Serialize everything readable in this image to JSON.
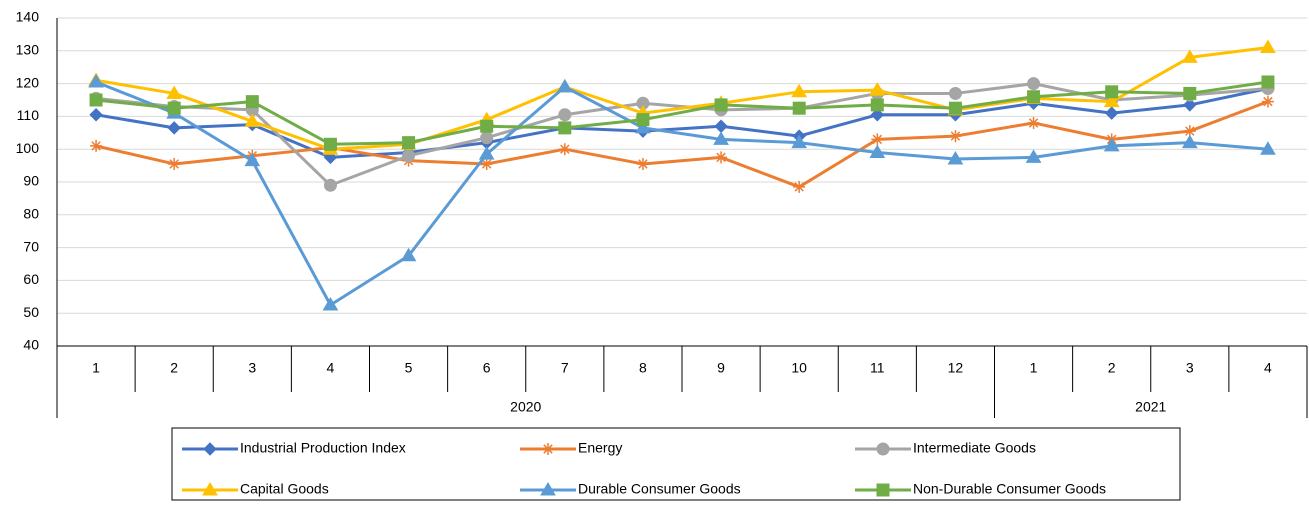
{
  "chart_data": {
    "type": "line",
    "categories": [
      "1",
      "2",
      "3",
      "4",
      "5",
      "6",
      "7",
      "8",
      "9",
      "10",
      "11",
      "12",
      "1",
      "2",
      "3",
      "4"
    ],
    "category_groups": [
      {
        "label": "2020",
        "span": 12
      },
      {
        "label": "2021",
        "span": 4
      }
    ],
    "ylim": [
      40,
      140
    ],
    "yticks": [
      40,
      50,
      60,
      70,
      80,
      90,
      100,
      110,
      120,
      130,
      140
    ],
    "grid": true,
    "legend": "bottom",
    "series": [
      {
        "name": "Industrial Production Index",
        "color": "#4472c4",
        "marker": "diamond",
        "values": [
          110.5,
          106.5,
          107.5,
          97.5,
          99,
          102,
          106.5,
          105.5,
          107,
          104,
          110.5,
          110.5,
          114,
          111,
          113.5,
          118.5
        ]
      },
      {
        "name": "Energy",
        "color": "#ed7d31",
        "marker": "star",
        "values": [
          101,
          95.5,
          98,
          100.5,
          96.5,
          95.5,
          100,
          95.5,
          97.5,
          88.5,
          103,
          104,
          108,
          103,
          105.5,
          114.5
        ]
      },
      {
        "name": "Intermediate Goods",
        "color": "#a5a5a5",
        "marker": "circle",
        "values": [
          115.5,
          113,
          112,
          89,
          98,
          103.5,
          110.5,
          114,
          112,
          112.5,
          117,
          117,
          120,
          115,
          116.5,
          118.5
        ]
      },
      {
        "name": "Capital Goods",
        "color": "#ffc000",
        "marker": "triangle",
        "values": [
          121,
          117,
          108.5,
          100,
          101.5,
          109,
          119,
          111,
          114,
          117.5,
          118,
          112,
          115.5,
          114.5,
          128,
          131
        ]
      },
      {
        "name": "Durable Consumer Goods",
        "color": "#5b9bd5",
        "marker": "triangle",
        "values": [
          120.5,
          111,
          96.5,
          52.5,
          67.5,
          98.5,
          119,
          106.5,
          103,
          102,
          99,
          97,
          97.5,
          101,
          102,
          100
        ]
      },
      {
        "name": "Non-Durable Consumer Goods",
        "color": "#70ad47",
        "marker": "square",
        "values": [
          115,
          112.5,
          114.5,
          101.5,
          102,
          107,
          106.5,
          109,
          113.5,
          112.5,
          113.5,
          112.5,
          116,
          117.5,
          117,
          120.5
        ]
      }
    ]
  }
}
